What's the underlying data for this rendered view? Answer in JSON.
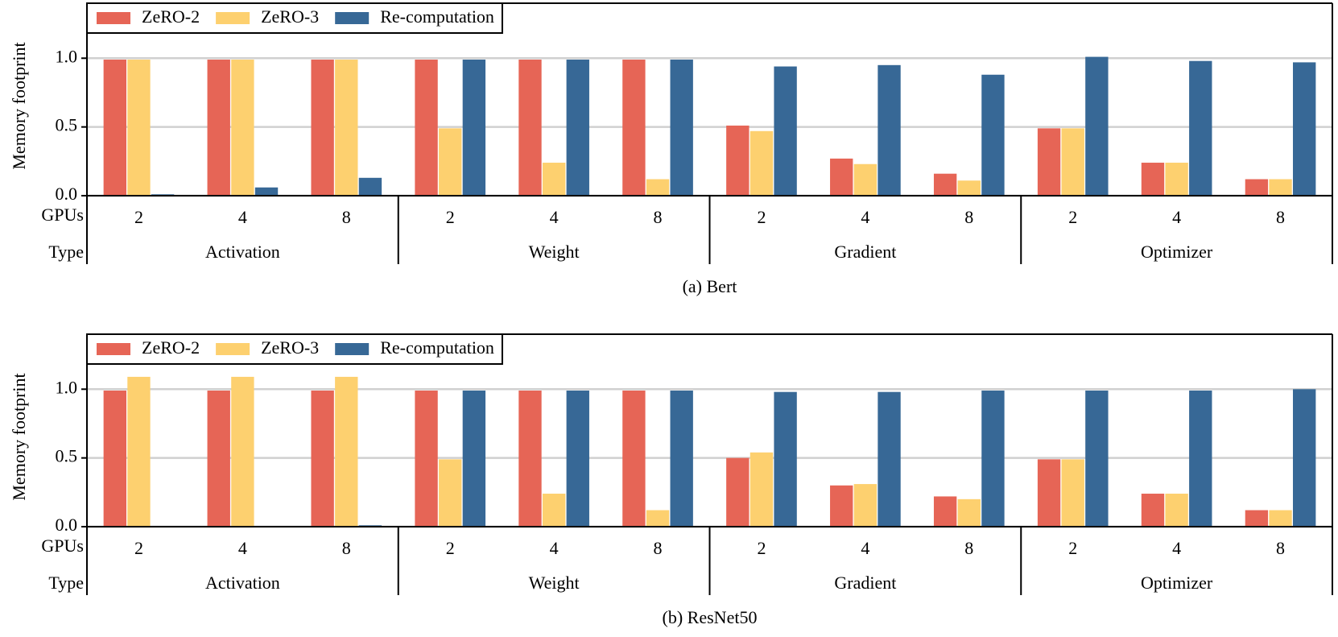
{
  "chart_data": [
    {
      "type": "bar",
      "title": "(a) Bert",
      "y_label": "Memory footprint",
      "x_row_labels": [
        "GPUs",
        "Type"
      ],
      "groups": [
        "Activation",
        "Weight",
        "Gradient",
        "Optimizer"
      ],
      "categories": [
        "2",
        "4",
        "8",
        "2",
        "4",
        "8",
        "2",
        "4",
        "8",
        "2",
        "4",
        "8"
      ],
      "series": [
        {
          "name": "ZeRO-2",
          "color": "#e66556",
          "values": [
            0.99,
            0.99,
            0.99,
            0.99,
            0.99,
            0.99,
            0.51,
            0.27,
            0.16,
            0.49,
            0.24,
            0.12
          ]
        },
        {
          "name": "ZeRO-3",
          "color": "#fdd06f",
          "values": [
            0.99,
            0.99,
            0.99,
            0.49,
            0.24,
            0.12,
            0.47,
            0.23,
            0.11,
            0.49,
            0.24,
            0.12
          ]
        },
        {
          "name": "Re-computation",
          "color": "#376896",
          "values": [
            0.01,
            0.06,
            0.13,
            0.99,
            0.99,
            0.99,
            0.94,
            0.95,
            0.88,
            1.01,
            0.98,
            0.97
          ]
        }
      ],
      "ylim": [
        0,
        1.4
      ],
      "yticks": [
        {
          "value": 0,
          "label": "0.0"
        },
        {
          "value": 0.5,
          "label": "0.5"
        },
        {
          "value": 1,
          "label": "1.0"
        }
      ],
      "grid": true,
      "legend": "top-left"
    },
    {
      "type": "bar",
      "title": "(b) ResNet50",
      "y_label": "Memory footprint",
      "x_row_labels": [
        "GPUs",
        "Type"
      ],
      "groups": [
        "Activation",
        "Weight",
        "Gradient",
        "Optimizer"
      ],
      "categories": [
        "2",
        "4",
        "8",
        "2",
        "4",
        "8",
        "2",
        "4",
        "8",
        "2",
        "4",
        "8"
      ],
      "series": [
        {
          "name": "ZeRO-2",
          "color": "#e66556",
          "values": [
            0.99,
            0.99,
            0.99,
            0.99,
            0.99,
            0.99,
            0.5,
            0.3,
            0.22,
            0.49,
            0.24,
            0.12
          ]
        },
        {
          "name": "ZeRO-3",
          "color": "#fdd06f",
          "values": [
            1.09,
            1.09,
            1.09,
            0.49,
            0.24,
            0.12,
            0.54,
            0.31,
            0.2,
            0.49,
            0.24,
            0.12
          ]
        },
        {
          "name": "Re-computation",
          "color": "#376896",
          "values": [
            0,
            0,
            0.01,
            0.99,
            0.99,
            0.99,
            0.98,
            0.98,
            0.99,
            0.99,
            0.99,
            1.0
          ]
        }
      ],
      "ylim": [
        0,
        1.4
      ],
      "yticks": [
        {
          "value": 0,
          "label": "0.0"
        },
        {
          "value": 0.5,
          "label": "0.5"
        },
        {
          "value": 1,
          "label": "1.0"
        }
      ],
      "grid": true,
      "legend": "top-left"
    }
  ]
}
